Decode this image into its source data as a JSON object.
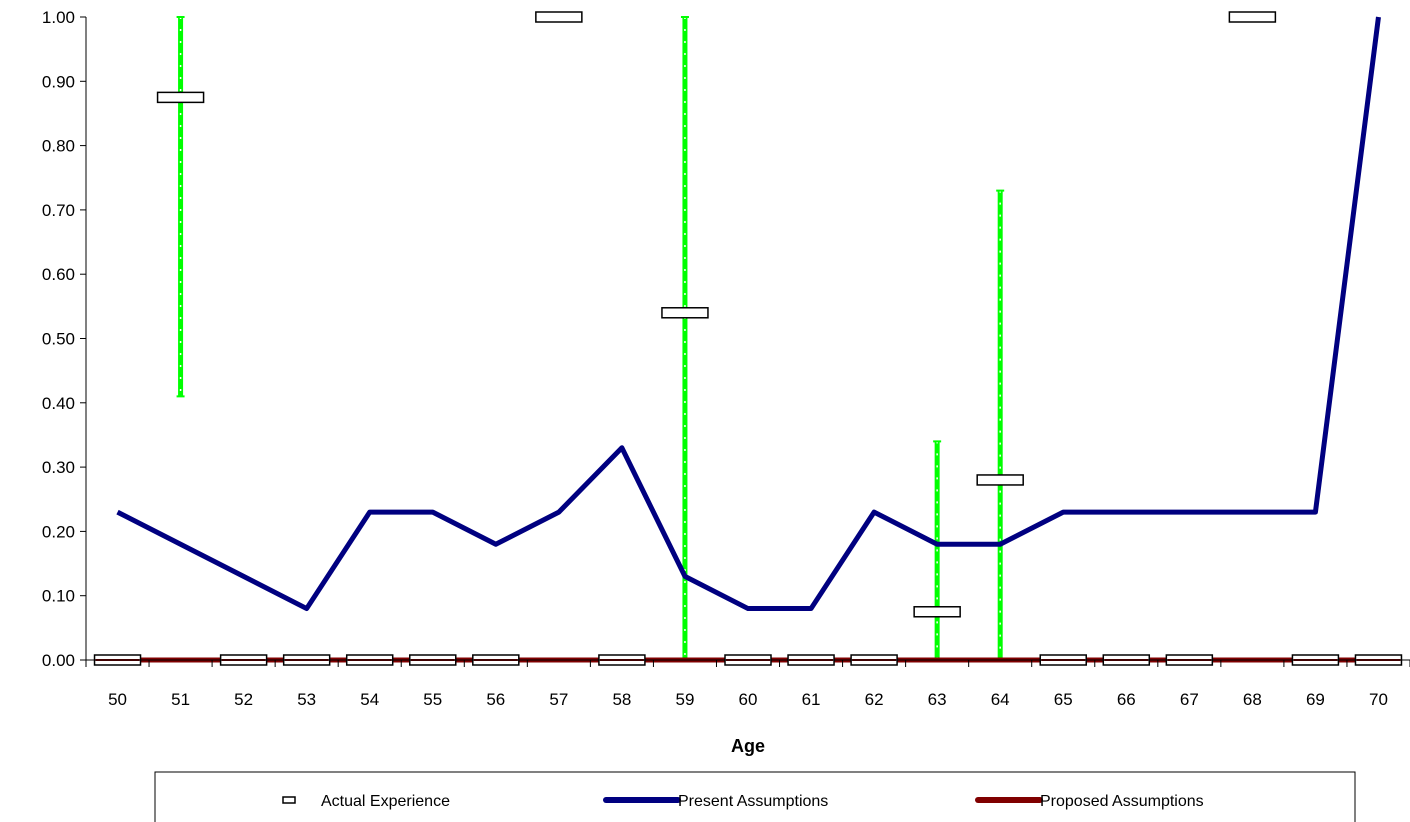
{
  "chart_data": {
    "type": "line",
    "xlabel": "Age",
    "ylabel": "",
    "ylim": [
      0,
      1
    ],
    "yticks": [
      "0.00",
      "0.10",
      "0.20",
      "0.30",
      "0.40",
      "0.50",
      "0.60",
      "0.70",
      "0.80",
      "0.90",
      "1.00"
    ],
    "categories": [
      "50",
      "51",
      "52",
      "53",
      "54",
      "55",
      "56",
      "57",
      "58",
      "59",
      "60",
      "61",
      "62",
      "63",
      "64",
      "65",
      "66",
      "67",
      "68",
      "69",
      "70"
    ],
    "grid": false,
    "legend_position": "bottom",
    "series": [
      {
        "name": "Actual Experience",
        "style": "box-marker",
        "color": "#000000",
        "values": [
          0,
          0.875,
          0,
          0,
          0,
          0,
          0,
          1.0,
          0,
          0.54,
          0,
          0,
          0,
          0.075,
          0.28,
          0,
          0,
          0,
          1.0,
          0,
          0
        ]
      },
      {
        "name": "Present Assumptions",
        "style": "line",
        "color": "#000080",
        "values": [
          0.23,
          0.18,
          0.13,
          0.08,
          0.23,
          0.23,
          0.18,
          0.23,
          0.33,
          0.13,
          0.08,
          0.08,
          0.23,
          0.18,
          0.18,
          0.23,
          0.23,
          0.23,
          0.23,
          0.23,
          1.0
        ]
      },
      {
        "name": "Proposed Assumptions",
        "style": "line",
        "color": "#800000",
        "values": [
          0,
          0,
          0,
          0,
          0,
          0,
          0,
          0,
          0,
          0,
          0,
          0,
          0,
          0,
          0,
          0,
          0,
          0,
          0,
          0,
          0
        ]
      }
    ],
    "error_bars": {
      "color": "#00ff00",
      "ranges": [
        {
          "x": "51",
          "low": 0.41,
          "high": 1.0
        },
        {
          "x": "57",
          "low": 1.0,
          "high": 1.0
        },
        {
          "x": "59",
          "low": 0.0,
          "high": 1.0
        },
        {
          "x": "63",
          "low": 0.0,
          "high": 0.34
        },
        {
          "x": "64",
          "low": 0.0,
          "high": 0.73
        },
        {
          "x": "68",
          "low": 1.0,
          "high": 1.0
        }
      ]
    }
  }
}
